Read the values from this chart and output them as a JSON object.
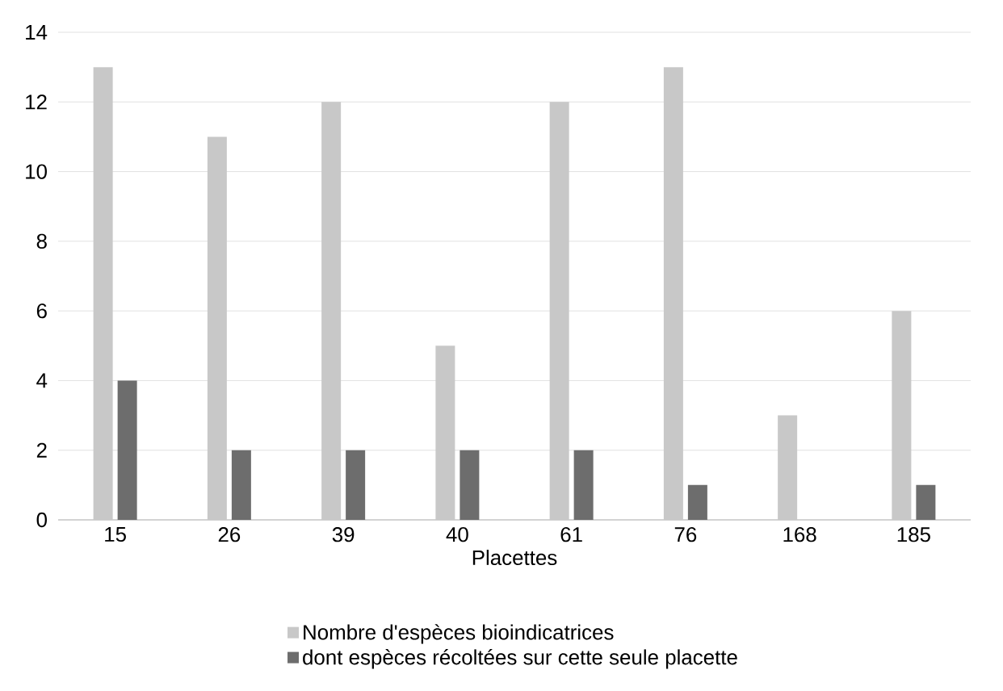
{
  "chart_data": {
    "type": "bar",
    "xlabel": "Placettes",
    "categories": [
      "15",
      "26",
      "39",
      "40",
      "61",
      "76",
      "168",
      "185"
    ],
    "series": [
      {
        "name": "Nombre d'espèces bioindicatrices",
        "color": "#c8c8c8",
        "values": [
          13,
          11,
          12,
          5,
          12,
          13,
          3,
          6
        ]
      },
      {
        "name": "dont espèces récoltées sur cette seule placette",
        "color": "#6d6d6d",
        "values": [
          4,
          2,
          2,
          2,
          2,
          1,
          0,
          1
        ]
      }
    ],
    "ylim": [
      0,
      14
    ],
    "yticks": [
      0,
      2,
      4,
      6,
      8,
      10,
      12,
      14
    ],
    "grid": "y",
    "legend": "bottom"
  }
}
